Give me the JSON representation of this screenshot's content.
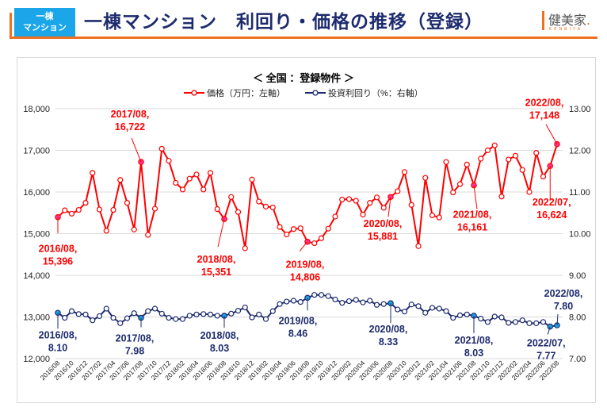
{
  "header": {
    "badge_line1": "一棟",
    "badge_line2": "マンション",
    "title": "一棟マンション　利回り・価格の推移（登録）",
    "logo_text": "健美家",
    "logo_dot": ".",
    "logo_sub": "KENBIYA"
  },
  "colors": {
    "price": "#ff0000",
    "yield": "#1d2b6e",
    "highlight_price": "#ff3399",
    "highlight_yield": "#1aa6e8",
    "accent": "#f07020",
    "badge": "#1aa6e8",
    "title": "#1d2b6e"
  },
  "chart_data": {
    "type": "line",
    "title": "＜ 全国 ：登録物件 ＞",
    "legend_position": "top",
    "grid": true,
    "x_tick_labels": [
      "2016/08",
      "2016/10",
      "2016/12",
      "2017/02",
      "2017/04",
      "2017/06",
      "2017/08",
      "2017/10",
      "2017/12",
      "2018/02",
      "2018/04",
      "2018/06",
      "2018/08",
      "2018/10",
      "2018/12",
      "2019/02",
      "2019/04",
      "2019/06",
      "2019/08",
      "2019/10",
      "2019/12",
      "2020/02",
      "2020/04",
      "2020/06",
      "2020/08",
      "2020/10",
      "2020/12",
      "2021/02",
      "2021/04",
      "2021/06",
      "2021/08",
      "2021/10",
      "2021/12",
      "2022/02",
      "2022/04",
      "2022/06",
      "2022/08"
    ],
    "x": [
      "2016/08",
      "2016/09",
      "2016/10",
      "2016/11",
      "2016/12",
      "2017/01",
      "2017/02",
      "2017/03",
      "2017/04",
      "2017/05",
      "2017/06",
      "2017/07",
      "2017/08",
      "2017/09",
      "2017/10",
      "2017/11",
      "2017/12",
      "2018/01",
      "2018/02",
      "2018/03",
      "2018/04",
      "2018/05",
      "2018/06",
      "2018/07",
      "2018/08",
      "2018/09",
      "2018/10",
      "2018/11",
      "2018/12",
      "2019/01",
      "2019/02",
      "2019/03",
      "2019/04",
      "2019/05",
      "2019/06",
      "2019/07",
      "2019/08",
      "2019/09",
      "2019/10",
      "2019/11",
      "2019/12",
      "2020/01",
      "2020/02",
      "2020/03",
      "2020/04",
      "2020/05",
      "2020/06",
      "2020/07",
      "2020/08",
      "2020/09",
      "2020/10",
      "2020/11",
      "2020/12",
      "2021/01",
      "2021/02",
      "2021/03",
      "2021/04",
      "2021/05",
      "2021/06",
      "2021/07",
      "2021/08",
      "2021/09",
      "2021/10",
      "2021/11",
      "2021/12",
      "2022/01",
      "2022/02",
      "2022/03",
      "2022/04",
      "2022/05",
      "2022/06",
      "2022/07",
      "2022/08"
    ],
    "y_left": {
      "label": "価格（万円：左軸）",
      "range": [
        12000,
        18000
      ],
      "ticks": [
        "12,000",
        "13,000",
        "14,000",
        "15,000",
        "16,000",
        "17,000",
        "18,000"
      ]
    },
    "y_right": {
      "label": "投資利回り（%：右軸）",
      "range": [
        7.0,
        13.0
      ],
      "ticks": [
        "7.00",
        "8.00",
        "9.00",
        "10.00",
        "11.00",
        "12.00",
        "13.00"
      ]
    },
    "series": [
      {
        "name": "価格（万円：左軸）",
        "axis": "left",
        "values": [
          15396,
          15560,
          15480,
          15570,
          15740,
          16460,
          15580,
          15070,
          15570,
          16290,
          15740,
          15100,
          16722,
          14970,
          15600,
          17040,
          16750,
          16220,
          16060,
          16320,
          16420,
          16060,
          16460,
          15590,
          15351,
          15880,
          15520,
          14650,
          16300,
          15770,
          15650,
          15630,
          15160,
          14980,
          15110,
          15130,
          14806,
          14770,
          14890,
          15120,
          15410,
          15820,
          15830,
          15790,
          15460,
          15740,
          15870,
          15620,
          15881,
          16020,
          16480,
          15690,
          14700,
          16340,
          15440,
          15390,
          16720,
          15990,
          16190,
          16660,
          16161,
          16800,
          17000,
          17120,
          15890,
          16780,
          16870,
          16530,
          16000,
          16940,
          16370,
          16624,
          17148
        ]
      },
      {
        "name": "投資利回り（%：右軸）",
        "axis": "right",
        "values": [
          8.1,
          7.98,
          8.14,
          8.07,
          8.06,
          7.92,
          8.02,
          8.2,
          7.98,
          7.85,
          7.97,
          8.09,
          7.98,
          8.14,
          8.2,
          8.08,
          7.98,
          7.95,
          7.95,
          8.03,
          8.06,
          8.07,
          8.06,
          8.03,
          8.03,
          8.08,
          8.15,
          8.23,
          7.99,
          8.06,
          7.95,
          8.14,
          8.31,
          8.37,
          8.39,
          8.36,
          8.46,
          8.53,
          8.53,
          8.5,
          8.42,
          8.34,
          8.38,
          8.41,
          8.35,
          8.39,
          8.29,
          8.31,
          8.33,
          8.18,
          8.13,
          8.3,
          8.26,
          8.1,
          8.22,
          8.2,
          8.14,
          7.98,
          8.04,
          8.06,
          8.03,
          7.96,
          7.88,
          8.01,
          7.99,
          7.86,
          7.88,
          7.92,
          7.85,
          7.85,
          7.88,
          7.77,
          7.8
        ]
      }
    ],
    "annotations": [
      {
        "series": 0,
        "x": "2016/08",
        "text_line1": "2016/08,",
        "text_line2": "15,396"
      },
      {
        "series": 0,
        "x": "2017/08",
        "text_line1": "2017/08,",
        "text_line2": "16,722"
      },
      {
        "series": 0,
        "x": "2018/08",
        "text_line1": "2018/08,",
        "text_line2": "15,351"
      },
      {
        "series": 0,
        "x": "2019/08",
        "text_line1": "2019/08,",
        "text_line2": "14,806"
      },
      {
        "series": 0,
        "x": "2020/08",
        "text_line1": "2020/08,",
        "text_line2": "15,881"
      },
      {
        "series": 0,
        "x": "2021/08",
        "text_line1": "2021/08,",
        "text_line2": "16,161"
      },
      {
        "series": 0,
        "x": "2022/07",
        "text_line1": "2022/07,",
        "text_line2": "16,624"
      },
      {
        "series": 0,
        "x": "2022/08",
        "text_line1": "2022/08,",
        "text_line2": "17,148"
      },
      {
        "series": 1,
        "x": "2016/08",
        "text_line1": "2016/08,",
        "text_line2": "8.10"
      },
      {
        "series": 1,
        "x": "2017/08",
        "text_line1": "2017/08,",
        "text_line2": "7.98"
      },
      {
        "series": 1,
        "x": "2018/08",
        "text_line1": "2018/08,",
        "text_line2": "8.03"
      },
      {
        "series": 1,
        "x": "2019/08",
        "text_line1": "2019/08,",
        "text_line2": "8.46"
      },
      {
        "series": 1,
        "x": "2020/08",
        "text_line1": "2020/08,",
        "text_line2": "8.33"
      },
      {
        "series": 1,
        "x": "2021/08",
        "text_line1": "2021/08,",
        "text_line2": "8.03"
      },
      {
        "series": 1,
        "x": "2022/07",
        "text_line1": "2022/07,",
        "text_line2": "7.77"
      },
      {
        "series": 1,
        "x": "2022/08",
        "text_line1": "2022/08,",
        "text_line2": "7.80"
      }
    ]
  }
}
